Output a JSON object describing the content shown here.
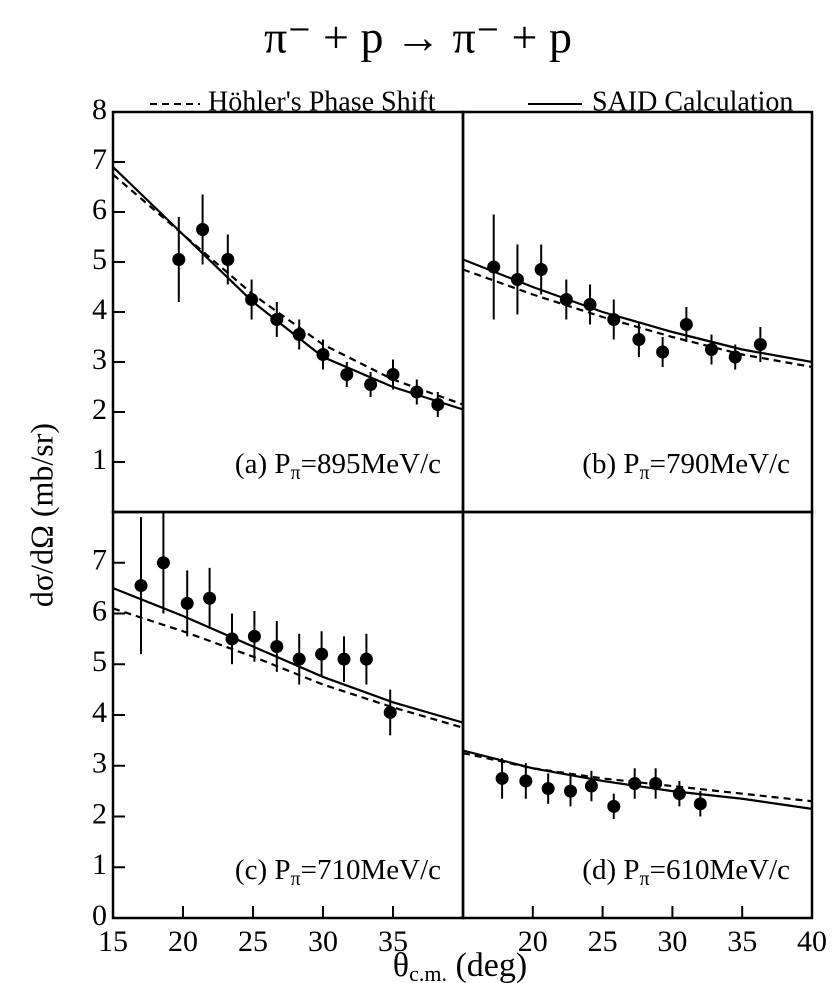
{
  "figure": {
    "title": "π⁻ + p → π⁻ + p",
    "x_label": {
      "main": "θ",
      "sub": "c.m.",
      "tail": " (deg)"
    },
    "y_label": "dσ/dΩ (mb/sr)"
  },
  "chart_data": [
    {
      "type": "line",
      "label": {
        "main": "(a) P",
        "sub": "π",
        "tail": "=895MeV/c"
      },
      "xlim": [
        15,
        40
      ],
      "ylim": [
        0,
        8
      ],
      "yticks": [
        1,
        2,
        3,
        4,
        5,
        6,
        7,
        8
      ],
      "series": [
        {
          "name": "Höhler's Phase Shift",
          "style": "dashed",
          "color": "#000000",
          "x": [
            15,
            20,
            25,
            30,
            35,
            40
          ],
          "values": [
            6.75,
            5.55,
            4.35,
            3.35,
            2.65,
            2.15
          ]
        },
        {
          "name": "SAID Calculation",
          "style": "solid",
          "color": "#000000",
          "x": [
            15,
            20,
            25,
            30,
            35,
            40
          ],
          "values": [
            6.9,
            5.55,
            4.2,
            3.1,
            2.5,
            2.05
          ]
        }
      ],
      "points": {
        "color": "#000000",
        "x": [
          19.7,
          21.4,
          23.2,
          24.9,
          26.7,
          28.3,
          30.0,
          31.7,
          33.4,
          35.0,
          36.7,
          38.2
        ],
        "values": [
          5.05,
          5.65,
          5.05,
          4.25,
          3.85,
          3.55,
          3.15,
          2.75,
          2.55,
          2.75,
          2.4,
          2.15
        ],
        "errors": [
          0.85,
          0.7,
          0.5,
          0.4,
          0.35,
          0.3,
          0.3,
          0.25,
          0.25,
          0.3,
          0.25,
          0.25
        ]
      }
    },
    {
      "type": "line",
      "label": {
        "main": "(b) P",
        "sub": "π",
        "tail": "=790MeV/c"
      },
      "xlim": [
        15,
        40
      ],
      "ylim": [
        0,
        8
      ],
      "series": [
        {
          "style": "dashed",
          "color": "#000000",
          "x": [
            15,
            20,
            25,
            30,
            35,
            40
          ],
          "values": [
            4.85,
            4.35,
            3.9,
            3.5,
            3.15,
            2.9
          ]
        },
        {
          "style": "solid",
          "color": "#000000",
          "x": [
            15,
            20,
            25,
            30,
            35,
            40
          ],
          "values": [
            5.05,
            4.5,
            4.0,
            3.6,
            3.25,
            3.0
          ]
        }
      ],
      "points": {
        "color": "#000000",
        "x": [
          17.2,
          18.9,
          20.6,
          22.4,
          24.1,
          25.8,
          27.6,
          29.3,
          31.0,
          32.8,
          34.5,
          36.3
        ],
        "values": [
          4.9,
          4.65,
          4.85,
          4.25,
          4.15,
          3.85,
          3.45,
          3.2,
          3.75,
          3.25,
          3.1,
          3.35
        ],
        "errors": [
          1.05,
          0.7,
          0.5,
          0.4,
          0.4,
          0.4,
          0.35,
          0.3,
          0.35,
          0.3,
          0.25,
          0.35
        ]
      }
    },
    {
      "type": "line",
      "label": {
        "main": "(c) P",
        "sub": "π",
        "tail": "=710MeV/c"
      },
      "xlim": [
        15,
        40
      ],
      "ylim": [
        0,
        8
      ],
      "xticks": [
        15,
        20,
        25,
        30,
        35
      ],
      "yticks": [
        0,
        1,
        2,
        3,
        4,
        5,
        6,
        7
      ],
      "series": [
        {
          "style": "dashed",
          "color": "#000000",
          "x": [
            15,
            20,
            25,
            30,
            35,
            40
          ],
          "values": [
            6.1,
            5.65,
            5.15,
            4.6,
            4.15,
            3.75
          ]
        },
        {
          "style": "solid",
          "color": "#000000",
          "x": [
            15,
            20,
            25,
            30,
            35,
            40
          ],
          "values": [
            6.5,
            5.95,
            5.35,
            4.75,
            4.25,
            3.85
          ]
        }
      ],
      "points": {
        "color": "#000000",
        "x": [
          17.0,
          18.6,
          20.3,
          21.9,
          23.5,
          25.1,
          26.7,
          28.3,
          29.9,
          31.5,
          33.1,
          34.8
        ],
        "values": [
          6.55,
          7.0,
          6.2,
          6.3,
          5.5,
          5.55,
          5.35,
          5.1,
          5.2,
          5.1,
          5.1,
          4.05
        ],
        "errors": [
          1.35,
          1.0,
          0.65,
          0.6,
          0.5,
          0.5,
          0.5,
          0.5,
          0.45,
          0.45,
          0.5,
          0.45
        ]
      }
    },
    {
      "type": "line",
      "label": {
        "main": "(d) P",
        "sub": "π",
        "tail": "=610MeV/c"
      },
      "xlim": [
        15,
        40
      ],
      "ylim": [
        0,
        8
      ],
      "xticks": [
        20,
        25,
        30,
        35,
        40
      ],
      "series": [
        {
          "style": "dashed",
          "color": "#000000",
          "x": [
            15,
            20,
            25,
            30,
            35,
            40
          ],
          "values": [
            3.25,
            2.95,
            2.75,
            2.6,
            2.45,
            2.3
          ]
        },
        {
          "style": "solid",
          "color": "#000000",
          "x": [
            15,
            20,
            25,
            30,
            35,
            40
          ],
          "values": [
            3.3,
            2.95,
            2.7,
            2.5,
            2.35,
            2.15
          ]
        }
      ],
      "points": {
        "color": "#000000",
        "x": [
          17.8,
          19.5,
          21.1,
          22.7,
          24.2,
          25.8,
          27.3,
          28.8,
          30.5,
          32.0
        ],
        "values": [
          2.75,
          2.7,
          2.55,
          2.5,
          2.6,
          2.2,
          2.65,
          2.65,
          2.45,
          2.25
        ],
        "errors": [
          0.4,
          0.35,
          0.3,
          0.3,
          0.3,
          0.25,
          0.3,
          0.3,
          0.25,
          0.25
        ]
      }
    }
  ]
}
